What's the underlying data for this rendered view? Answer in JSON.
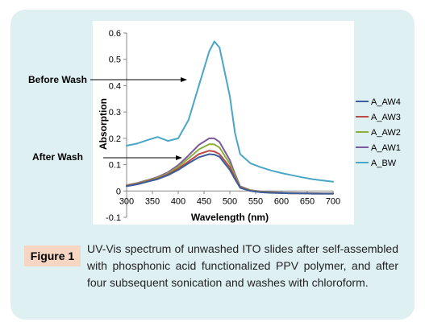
{
  "figure": {
    "label": "Figure 1",
    "caption": "UV-Vis spectrum of unwashed ITO slides after self-assembled with phosphonic acid functionalized PPV polymer, and after four subsequent sonication and washes with chloroform."
  },
  "annotations": {
    "before_wash": "Before Wash",
    "after_wash": "After Wash"
  },
  "chart_data": {
    "type": "line",
    "title": "",
    "xlabel": "Wavelength (nm)",
    "ylabel": "Absorption",
    "xlim": [
      300,
      700
    ],
    "ylim": [
      -0.1,
      0.6
    ],
    "x_ticks": [
      "300",
      "350",
      "400",
      "450",
      "500",
      "550",
      "600",
      "650",
      "700"
    ],
    "y_ticks": [
      "0.6",
      "0.5",
      "0.4",
      "0.3",
      "0.2",
      "0.1",
      "0",
      "-0.1"
    ],
    "grid": false,
    "legend_position": "right",
    "x": [
      300,
      320,
      340,
      360,
      380,
      400,
      420,
      440,
      460,
      470,
      480,
      500,
      510,
      520,
      540,
      560,
      580,
      600,
      620,
      640,
      660,
      680,
      700
    ],
    "series": [
      {
        "name": "A_AW4",
        "color": "#3a5f9a",
        "values": [
          0.018,
          0.025,
          0.035,
          0.045,
          0.06,
          0.08,
          0.105,
          0.128,
          0.14,
          0.138,
          0.13,
          0.08,
          0.045,
          0.012,
          0.0,
          -0.005,
          -0.007,
          -0.008,
          -0.009,
          -0.009,
          -0.01,
          -0.01,
          -0.01
        ]
      },
      {
        "name": "A_AW3",
        "color": "#b84a48",
        "values": [
          0.02,
          0.027,
          0.037,
          0.047,
          0.063,
          0.085,
          0.112,
          0.14,
          0.153,
          0.15,
          0.14,
          0.09,
          0.05,
          0.014,
          0.001,
          -0.004,
          -0.006,
          -0.008,
          -0.009,
          -0.009,
          -0.01,
          -0.01,
          -0.01
        ]
      },
      {
        "name": "A_AW2",
        "color": "#8fac3e",
        "values": [
          0.021,
          0.029,
          0.039,
          0.05,
          0.067,
          0.092,
          0.124,
          0.158,
          0.178,
          0.177,
          0.165,
          0.103,
          0.057,
          0.016,
          0.002,
          -0.003,
          -0.005,
          -0.007,
          -0.008,
          -0.009,
          -0.009,
          -0.01,
          -0.01
        ]
      },
      {
        "name": "A_AW1",
        "color": "#7a5a9c",
        "values": [
          0.022,
          0.03,
          0.041,
          0.053,
          0.071,
          0.098,
          0.135,
          0.175,
          0.2,
          0.2,
          0.186,
          0.117,
          0.064,
          0.018,
          0.003,
          -0.002,
          -0.004,
          -0.006,
          -0.007,
          -0.008,
          -0.008,
          -0.009,
          -0.009
        ]
      },
      {
        "name": "A_BW",
        "color": "#4aa6c6",
        "values": [
          0.172,
          0.18,
          0.193,
          0.205,
          0.19,
          0.2,
          0.27,
          0.4,
          0.53,
          0.568,
          0.545,
          0.36,
          0.22,
          0.14,
          0.105,
          0.09,
          0.078,
          0.068,
          0.06,
          0.052,
          0.045,
          0.04,
          0.035
        ]
      }
    ]
  }
}
